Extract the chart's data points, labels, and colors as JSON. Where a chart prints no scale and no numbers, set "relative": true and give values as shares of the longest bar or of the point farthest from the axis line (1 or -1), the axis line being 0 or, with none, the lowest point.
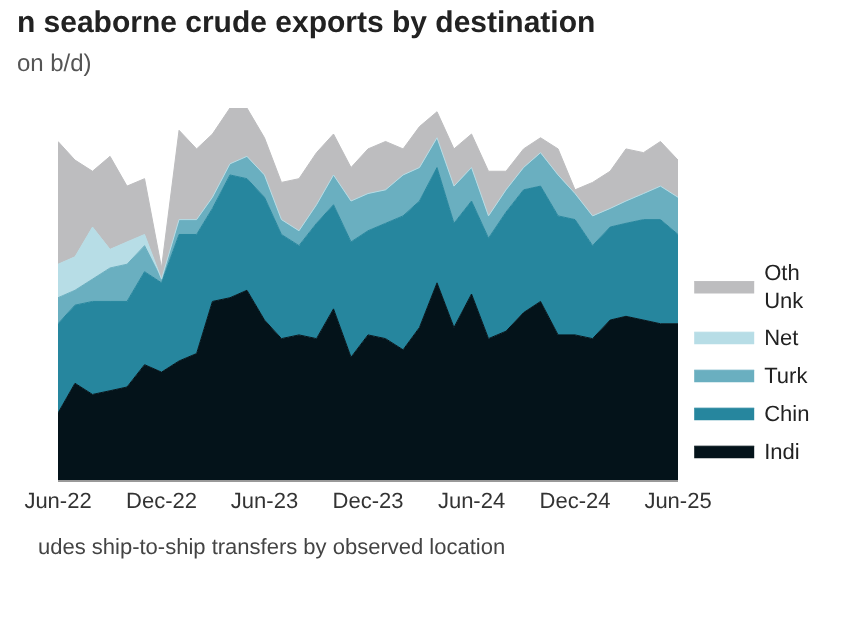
{
  "chart_data": {
    "type": "area",
    "stacked": true,
    "relative": true,
    "title": "n seaborne crude exports by destination",
    "subtitle": "on b/d)",
    "annotations": [
      "udes ship-to-ship transfers by observed location"
    ],
    "x": [
      "2022-06",
      "2022-07",
      "2022-08",
      "2022-09",
      "2022-10",
      "2022-11",
      "2022-12",
      "2023-01",
      "2023-02",
      "2023-03",
      "2023-04",
      "2023-05",
      "2023-06",
      "2023-07",
      "2023-08",
      "2023-09",
      "2023-10",
      "2023-11",
      "2023-12",
      "2024-01",
      "2024-02",
      "2024-03",
      "2024-04",
      "2024-05",
      "2024-06",
      "2024-07",
      "2024-08",
      "2024-09",
      "2024-10",
      "2024-11",
      "2024-12",
      "2025-01",
      "2025-02",
      "2025-03",
      "2025-04",
      "2025-05",
      "2025-06"
    ],
    "xlim": [
      "2022-06",
      "2025-06"
    ],
    "xticks": [
      {
        "value": "2022-06",
        "label": "Jun-22"
      },
      {
        "value": "2022-12",
        "label": "Dec-22"
      },
      {
        "value": "2023-06",
        "label": "Jun-23"
      },
      {
        "value": "2023-12",
        "label": "Dec-23"
      },
      {
        "value": "2024-06",
        "label": "Jun-24"
      },
      {
        "value": "2024-12",
        "label": "Dec-24"
      },
      {
        "value": "2025-06",
        "label": "Jun-25"
      }
    ],
    "legend": "right",
    "series": [
      {
        "name": "Indi",
        "color": "#04131a",
        "values": [
          0.18,
          0.26,
          0.23,
          0.24,
          0.25,
          0.31,
          0.29,
          0.32,
          0.34,
          0.48,
          0.49,
          0.51,
          0.43,
          0.38,
          0.39,
          0.38,
          0.46,
          0.33,
          0.39,
          0.38,
          0.35,
          0.41,
          0.53,
          0.41,
          0.5,
          0.38,
          0.4,
          0.45,
          0.48,
          0.39,
          0.39,
          0.38,
          0.43,
          0.44,
          0.43,
          0.42,
          0.42
        ]
      },
      {
        "name": "Chin",
        "color": "#26869e",
        "values": [
          0.24,
          0.21,
          0.25,
          0.24,
          0.23,
          0.25,
          0.24,
          0.34,
          0.32,
          0.25,
          0.33,
          0.3,
          0.33,
          0.28,
          0.24,
          0.31,
          0.28,
          0.31,
          0.28,
          0.31,
          0.36,
          0.34,
          0.31,
          0.28,
          0.25,
          0.27,
          0.32,
          0.33,
          0.31,
          0.32,
          0.31,
          0.25,
          0.25,
          0.25,
          0.27,
          0.28,
          0.24
        ]
      },
      {
        "name": "Turk",
        "color": "#6aafc0",
        "values": [
          0.07,
          0.04,
          0.06,
          0.09,
          0.1,
          0.07,
          0.01,
          0.04,
          0.04,
          0.03,
          0.03,
          0.06,
          0.06,
          0.04,
          0.04,
          0.05,
          0.08,
          0.11,
          0.1,
          0.09,
          0.11,
          0.09,
          0.08,
          0.1,
          0.09,
          0.06,
          0.06,
          0.06,
          0.09,
          0.11,
          0.07,
          0.08,
          0.05,
          0.06,
          0.07,
          0.09,
          0.1
        ]
      },
      {
        "name": "Net",
        "color": "#b7dde6",
        "values": [
          0.09,
          0.09,
          0.14,
          0.05,
          0.06,
          0.03,
          0,
          0,
          0,
          0,
          0,
          0,
          0,
          0,
          0,
          0,
          0,
          0,
          0,
          0,
          0,
          0,
          0,
          0,
          0,
          0,
          0,
          0,
          0,
          0,
          0,
          0,
          0,
          0,
          0,
          0,
          0
        ]
      },
      {
        "name": "Oth\nUnk",
        "color": "#bdbdbf",
        "values": [
          0.33,
          0.26,
          0.15,
          0.25,
          0.15,
          0.15,
          0.03,
          0.24,
          0.19,
          0.17,
          0.15,
          0.13,
          0.1,
          0.1,
          0.14,
          0.14,
          0.11,
          0.09,
          0.12,
          0.13,
          0.07,
          0.11,
          0.07,
          0.1,
          0.09,
          0.12,
          0.05,
          0.05,
          0.04,
          0.07,
          0.01,
          0.09,
          0.1,
          0.14,
          0.11,
          0.12,
          0.1
        ]
      }
    ]
  }
}
